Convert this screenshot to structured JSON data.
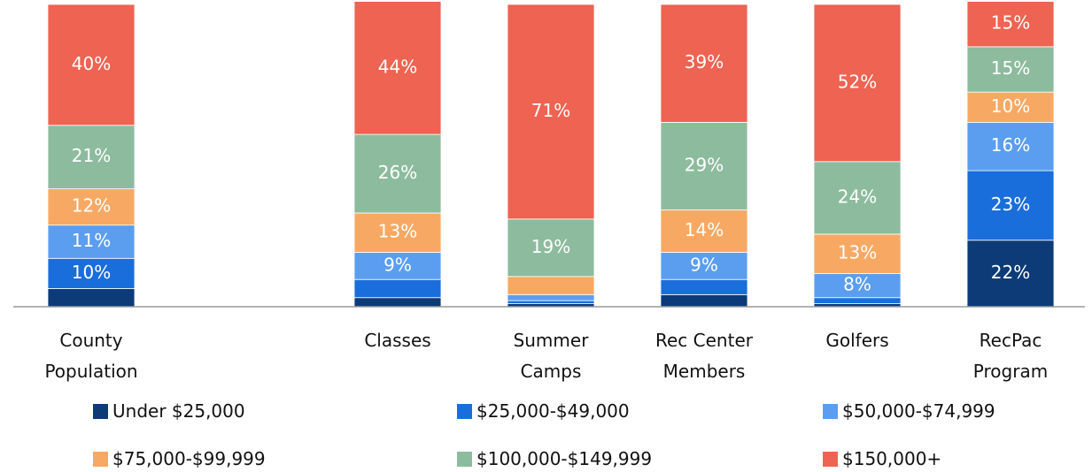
{
  "chart_data": {
    "type": "stacked_bar",
    "categories": [
      "County Population",
      null,
      "Classes",
      "Summer Camps",
      "Rec Center Members",
      "Golfers",
      "RecPac Program"
    ],
    "ylim": [
      0,
      100
    ],
    "series": [
      {
        "name": "Under $25,000",
        "color": "#0c3b78",
        "values": [
          6,
          null,
          3,
          1,
          4,
          1,
          22
        ],
        "value_labels": [
          null,
          null,
          null,
          null,
          null,
          null,
          "22%"
        ]
      },
      {
        "name": "$25,000-$49,000",
        "color": "#1a6edb",
        "values": [
          10,
          null,
          6,
          1,
          5,
          2,
          23
        ],
        "value_labels": [
          "10%",
          null,
          null,
          null,
          null,
          null,
          "23%"
        ]
      },
      {
        "name": "$50,000-$74,999",
        "color": "#5b9ef0",
        "values": [
          11,
          null,
          9,
          2,
          9,
          8,
          16
        ],
        "value_labels": [
          "11%",
          null,
          "9%",
          null,
          "9%",
          "8%",
          "16%"
        ]
      },
      {
        "name": "$75,000-$99,999",
        "color": "#f7a964",
        "values": [
          12,
          null,
          13,
          6,
          14,
          13,
          10
        ],
        "value_labels": [
          "12%",
          null,
          "13%",
          null,
          "14%",
          "13%",
          "10%"
        ]
      },
      {
        "name": "$100,000-$149,999",
        "color": "#8dbb9e",
        "values": [
          21,
          null,
          26,
          19,
          29,
          24,
          15
        ],
        "value_labels": [
          "21%",
          null,
          "26%",
          "19%",
          "29%",
          "24%",
          "15%"
        ]
      },
      {
        "name": "$150,000+",
        "color": "#ee6352",
        "values": [
          40,
          null,
          44,
          71,
          39,
          52,
          15
        ],
        "value_labels": [
          "40%",
          null,
          "44%",
          "71%",
          "39%",
          "52%",
          "15%"
        ]
      }
    ]
  }
}
